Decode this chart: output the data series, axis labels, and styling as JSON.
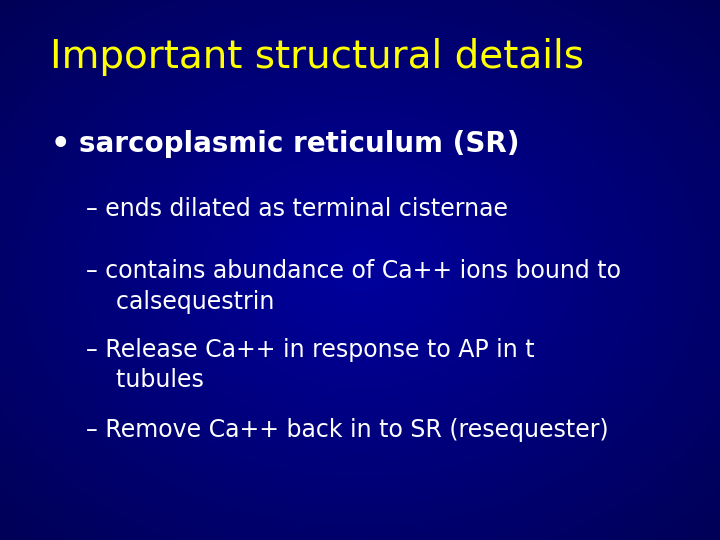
{
  "title": "Important structural details",
  "title_color": "#FFFF00",
  "title_fontsize": 28,
  "bullet_text": "sarcoplasmic reticulum (SR)",
  "bullet_color": "#FFFFFF",
  "bullet_fontsize": 20,
  "sub_items": [
    "– ends dilated as terminal cisternae",
    "– contains abundance of Ca++ ions bound to\n    calsequestrin",
    "– Release Ca++ in response to AP in t\n    tubules",
    "– Remove Ca++ back in to SR (resequester)"
  ],
  "sub_color": "#FFFFFF",
  "sub_fontsize": 17,
  "bg_dark": "#00007a",
  "bg_mid": "#0000cc"
}
